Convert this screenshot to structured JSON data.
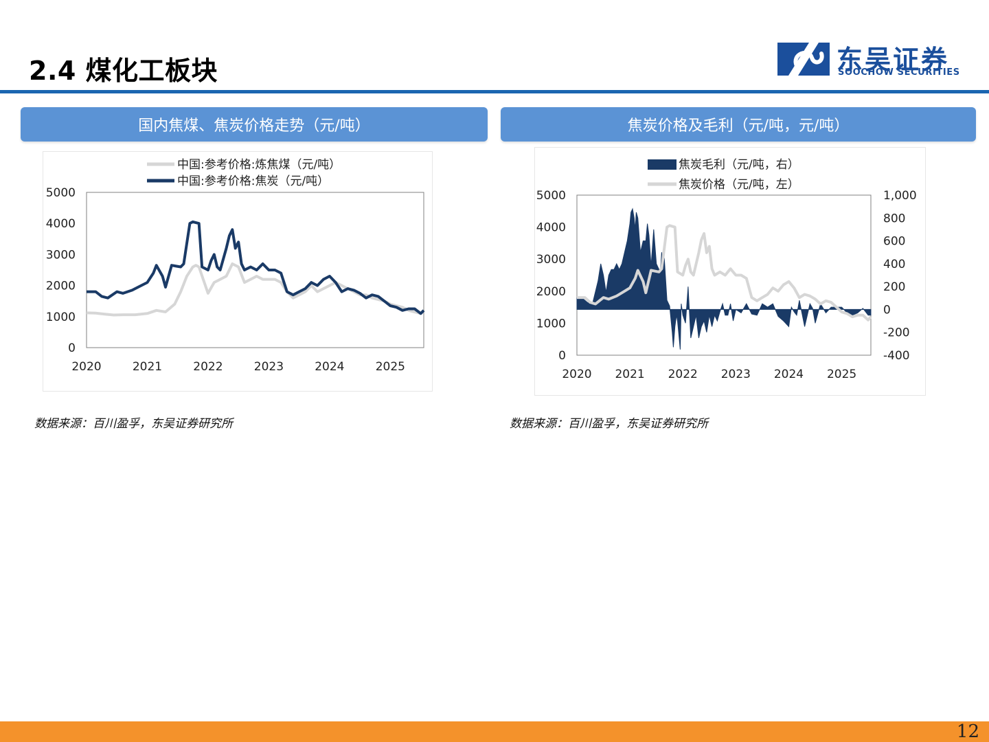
{
  "page": {
    "title": "2.4 煤化工板块",
    "page_number": "12"
  },
  "logo": {
    "cn": "东吴证券",
    "en": "SOOCHOW SECURITIES",
    "brand_color": "#1b4f9c"
  },
  "colors": {
    "navy": "#1a3a66",
    "gray": "#d6d6d6",
    "header": "#5b93d5",
    "footer": "#f4922b",
    "rule": "#1b66b1"
  },
  "left_panel": {
    "header": "国内焦煤、焦炭价格走势（元/吨）",
    "source": "数据来源：百川盈孚，东吴证券研究所"
  },
  "right_panel": {
    "header": "焦炭价格及毛利（元/吨，元/吨）",
    "source": "数据来源：百川盈孚，东吴证券研究所"
  },
  "chart_data": [
    {
      "type": "line",
      "title": "国内焦煤、焦炭价格走势（元/吨）",
      "ylim": [
        0,
        5000
      ],
      "yticks": [
        "0",
        "1000",
        "2000",
        "3000",
        "4000",
        "5000"
      ],
      "xlim": [
        2020,
        2025.55
      ],
      "xticks": [
        "2020",
        "2021",
        "2022",
        "2023",
        "2024",
        "2025"
      ],
      "series": [
        {
          "name": "中国:参考价格:炼焦煤（元/吨）",
          "color": "#d6d6d6",
          "x": [
            2020.0,
            2020.15,
            2020.3,
            2020.45,
            2020.6,
            2020.8,
            2021.0,
            2021.15,
            2021.3,
            2021.45,
            2021.55,
            2021.65,
            2021.75,
            2021.8,
            2021.85,
            2021.92,
            2022.0,
            2022.1,
            2022.2,
            2022.3,
            2022.4,
            2022.5,
            2022.6,
            2022.7,
            2022.8,
            2022.9,
            2023.0,
            2023.1,
            2023.2,
            2023.3,
            2023.4,
            2023.5,
            2023.6,
            2023.7,
            2023.8,
            2023.9,
            2024.0,
            2024.1,
            2024.2,
            2024.3,
            2024.4,
            2024.5,
            2024.6,
            2024.7,
            2024.8,
            2024.9,
            2025.0,
            2025.1,
            2025.2,
            2025.3,
            2025.4,
            2025.5
          ],
          "values": [
            1120,
            1110,
            1080,
            1050,
            1060,
            1060,
            1100,
            1200,
            1150,
            1400,
            1800,
            2300,
            2600,
            2650,
            2600,
            2200,
            1750,
            2100,
            2200,
            2300,
            2700,
            2600,
            2100,
            2200,
            2300,
            2200,
            2200,
            2200,
            2100,
            1800,
            1600,
            1700,
            1800,
            2000,
            1800,
            1900,
            2000,
            2100,
            2000,
            1900,
            1800,
            1700,
            1700,
            1600,
            1550,
            1500,
            1400,
            1350,
            1300,
            1200,
            1150,
            1100
          ]
        },
        {
          "name": "中国:参考价格:焦炭（元/吨）",
          "color": "#1a3a66",
          "x": [
            2020.0,
            2020.15,
            2020.25,
            2020.35,
            2020.5,
            2020.6,
            2020.75,
            2020.9,
            2021.0,
            2021.1,
            2021.15,
            2021.25,
            2021.3,
            2021.4,
            2021.55,
            2021.6,
            2021.7,
            2021.75,
            2021.85,
            2021.9,
            2022.0,
            2022.05,
            2022.1,
            2022.15,
            2022.2,
            2022.3,
            2022.35,
            2022.4,
            2022.45,
            2022.5,
            2022.55,
            2022.6,
            2022.7,
            2022.8,
            2022.9,
            2023.0,
            2023.1,
            2023.2,
            2023.3,
            2023.4,
            2023.5,
            2023.6,
            2023.7,
            2023.8,
            2023.9,
            2024.0,
            2024.1,
            2024.2,
            2024.3,
            2024.4,
            2024.5,
            2024.6,
            2024.7,
            2024.8,
            2024.9,
            2025.0,
            2025.1,
            2025.2,
            2025.3,
            2025.4,
            2025.5,
            2025.55
          ],
          "values": [
            1800,
            1800,
            1650,
            1600,
            1800,
            1750,
            1850,
            2000,
            2100,
            2400,
            2650,
            2300,
            1950,
            2650,
            2600,
            2700,
            4000,
            4050,
            4000,
            2600,
            2500,
            2800,
            3000,
            2600,
            2500,
            3200,
            3600,
            3800,
            3200,
            3400,
            2700,
            2500,
            2600,
            2500,
            2700,
            2500,
            2500,
            2400,
            1800,
            1700,
            1800,
            1900,
            2100,
            2000,
            2200,
            2300,
            2100,
            1800,
            1900,
            1850,
            1750,
            1600,
            1700,
            1650,
            1500,
            1350,
            1300,
            1200,
            1250,
            1250,
            1100,
            1200
          ]
        }
      ]
    },
    {
      "type": "bar+line",
      "title": "焦炭价格及毛利（元/吨，元/吨）",
      "ylim_left": [
        0,
        5000
      ],
      "yticks_left": [
        "0",
        "1000",
        "2000",
        "3000",
        "4000",
        "5000"
      ],
      "ylim_right": [
        -400,
        1000
      ],
      "yticks_right": [
        "-400",
        "-200",
        "0",
        "200",
        "400",
        "600",
        "800",
        "1,000"
      ],
      "xlim": [
        2020,
        2025.55
      ],
      "xticks": [
        "2020",
        "2021",
        "2022",
        "2023",
        "2024",
        "2025"
      ],
      "series": [
        {
          "name": "焦炭毛利（元/吨，右）",
          "type": "area",
          "axis": "right",
          "color": "#1a3a66",
          "x": [
            2020.0,
            2020.1,
            2020.2,
            2020.3,
            2020.4,
            2020.45,
            2020.5,
            2020.55,
            2020.6,
            2020.65,
            2020.7,
            2020.75,
            2020.8,
            2020.85,
            2020.9,
            2020.95,
            2021.0,
            2021.02,
            2021.05,
            2021.08,
            2021.1,
            2021.12,
            2021.15,
            2021.2,
            2021.25,
            2021.3,
            2021.33,
            2021.36,
            2021.4,
            2021.45,
            2021.5,
            2021.55,
            2021.58,
            2021.6,
            2021.62,
            2021.65,
            2021.7,
            2021.75,
            2021.8,
            2021.82,
            2021.85,
            2021.88,
            2021.9,
            2021.92,
            2021.95,
            2021.97,
            2022.0,
            2022.05,
            2022.1,
            2022.15,
            2022.2,
            2022.25,
            2022.3,
            2022.35,
            2022.4,
            2022.45,
            2022.5,
            2022.55,
            2022.6,
            2022.65,
            2022.7,
            2022.75,
            2022.8,
            2022.85,
            2022.9,
            2022.95,
            2023.0,
            2023.1,
            2023.2,
            2023.3,
            2023.4,
            2023.5,
            2023.6,
            2023.7,
            2023.8,
            2023.9,
            2024.0,
            2024.05,
            2024.1,
            2024.15,
            2024.2,
            2024.3,
            2024.4,
            2024.45,
            2024.5,
            2024.6,
            2024.7,
            2024.8,
            2024.9,
            2025.0,
            2025.1,
            2025.2,
            2025.3,
            2025.4,
            2025.5,
            2025.55
          ],
          "values": [
            100,
            100,
            60,
            60,
            250,
            400,
            300,
            150,
            300,
            350,
            350,
            400,
            350,
            400,
            500,
            600,
            750,
            850,
            880,
            800,
            700,
            850,
            800,
            500,
            600,
            600,
            750,
            650,
            380,
            700,
            400,
            350,
            350,
            500,
            350,
            450,
            80,
            30,
            -200,
            -330,
            -150,
            -50,
            -100,
            -200,
            -350,
            50,
            -50,
            -120,
            200,
            -250,
            -150,
            -50,
            -250,
            -150,
            -100,
            -200,
            -50,
            -150,
            -50,
            -100,
            -20,
            50,
            -50,
            -50,
            50,
            -100,
            0,
            -30,
            50,
            -40,
            -50,
            50,
            20,
            50,
            -60,
            -100,
            -150,
            20,
            -20,
            -50,
            80,
            -150,
            50,
            10,
            -120,
            50,
            -30,
            20,
            20,
            20,
            -30,
            -50,
            -30,
            10,
            -50,
            -50
          ]
        },
        {
          "name": "焦炭价格（元/吨，左）",
          "type": "line",
          "axis": "left",
          "color": "#d6d6d6",
          "x": [
            2020.0,
            2020.15,
            2020.25,
            2020.35,
            2020.5,
            2020.6,
            2020.75,
            2020.9,
            2021.0,
            2021.1,
            2021.15,
            2021.25,
            2021.3,
            2021.4,
            2021.55,
            2021.6,
            2021.7,
            2021.75,
            2021.85,
            2021.9,
            2022.0,
            2022.05,
            2022.1,
            2022.15,
            2022.2,
            2022.3,
            2022.35,
            2022.4,
            2022.45,
            2022.5,
            2022.55,
            2022.6,
            2022.7,
            2022.8,
            2022.9,
            2023.0,
            2023.1,
            2023.2,
            2023.3,
            2023.4,
            2023.5,
            2023.6,
            2023.7,
            2023.8,
            2023.9,
            2024.0,
            2024.1,
            2024.2,
            2024.3,
            2024.4,
            2024.5,
            2024.6,
            2024.7,
            2024.8,
            2024.9,
            2025.0,
            2025.1,
            2025.2,
            2025.3,
            2025.4,
            2025.5,
            2025.55
          ],
          "values": [
            1800,
            1800,
            1650,
            1600,
            1800,
            1750,
            1850,
            2000,
            2100,
            2400,
            2650,
            2300,
            1950,
            2650,
            2600,
            2700,
            4000,
            4050,
            4000,
            2600,
            2500,
            2800,
            3000,
            2600,
            2500,
            3200,
            3600,
            3800,
            3200,
            3400,
            2700,
            2500,
            2600,
            2500,
            2700,
            2500,
            2500,
            2400,
            1800,
            1700,
            1800,
            1900,
            2100,
            2000,
            2200,
            2300,
            2100,
            1800,
            1900,
            1850,
            1750,
            1600,
            1700,
            1650,
            1500,
            1350,
            1300,
            1200,
            1250,
            1250,
            1100,
            1200
          ]
        }
      ]
    }
  ]
}
